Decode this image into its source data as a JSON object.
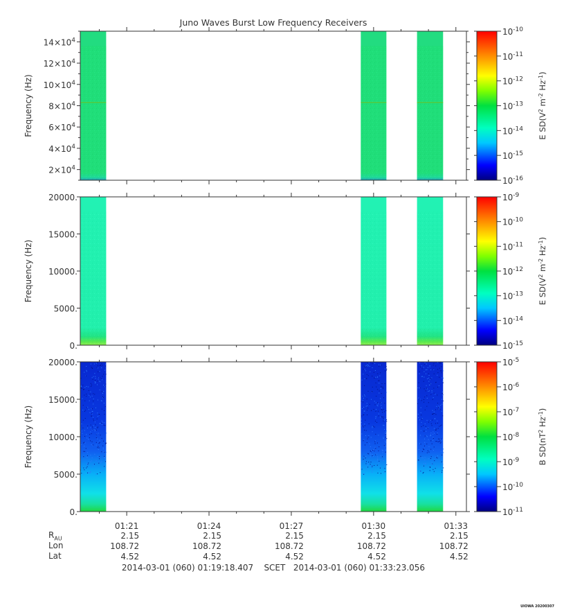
{
  "title": "Juno Waves Burst Low Frequency Receivers",
  "stamp": "UIOWA 20200307",
  "time_ticks": [
    "01:21",
    "01:24",
    "01:27",
    "01:30",
    "01:33"
  ],
  "ephemeris": {
    "labels": [
      "R",
      "Lon",
      "Lat"
    ],
    "r_subscript": "AU",
    "rows": [
      [
        "2.15",
        "2.15",
        "2.15",
        "2.15",
        "2.15"
      ],
      [
        "108.72",
        "108.72",
        "108.72",
        "108.72",
        "108.72"
      ],
      [
        "4.52",
        "4.52",
        "4.52",
        "4.52",
        "4.52"
      ]
    ]
  },
  "footer": {
    "start": "2014-03-01 (060) 01:19:18.407",
    "label": "SCET",
    "end": "2014-03-01 (060) 01:33:23.056"
  },
  "colors": {
    "axis": "#333333",
    "background": "#ffffff"
  },
  "chart_data": [
    {
      "type": "heatmap",
      "title": "Juno Waves Burst Low Frequency Receivers",
      "ylabel": "Frequency (Hz)",
      "ylim": [
        10000,
        150000
      ],
      "yticks": [
        {
          "v": 20000,
          "m": "2",
          "e": "4"
        },
        {
          "v": 40000,
          "m": "4",
          "e": "4"
        },
        {
          "v": 60000,
          "m": "6",
          "e": "4"
        },
        {
          "v": 80000,
          "m": "8",
          "e": "4"
        },
        {
          "v": 100000,
          "m": "10",
          "e": "4"
        },
        {
          "v": 120000,
          "m": "12",
          "e": "4"
        },
        {
          "v": 140000,
          "m": "14",
          "e": "4"
        }
      ],
      "colorbar": {
        "label": "E SD",
        "unit_base": "V",
        "unit": "m",
        "unit_tail": "Hz",
        "exp_min": -16,
        "exp_max": -10
      },
      "data_intervals": [
        "01:19:18-01:20:15",
        "01:29:32-01:30:28",
        "01:31:35-01:32:32"
      ],
      "dominant_level": "1e-13 to 1e-14"
    },
    {
      "type": "heatmap",
      "ylabel": "Frequency (Hz)",
      "ylim": [
        0,
        20000
      ],
      "yticks": [
        {
          "v": 0,
          "t": "0."
        },
        {
          "v": 5000,
          "t": "5000."
        },
        {
          "v": 10000,
          "t": "10000."
        },
        {
          "v": 15000,
          "t": "15000."
        },
        {
          "v": 20000,
          "t": "20000."
        }
      ],
      "colorbar": {
        "label": "E SD",
        "unit_base": "V",
        "unit": "m",
        "unit_tail": "Hz",
        "exp_min": -15,
        "exp_max": -9
      },
      "data_intervals": [
        "01:19:18-01:20:15",
        "01:29:32-01:30:28",
        "01:31:35-01:32:32"
      ],
      "dominant_level": "1e-13"
    },
    {
      "type": "heatmap",
      "ylabel": "Frequency (Hz)",
      "ylim": [
        0,
        20000
      ],
      "yticks": [
        {
          "v": 0,
          "t": "0."
        },
        {
          "v": 5000,
          "t": "5000."
        },
        {
          "v": 10000,
          "t": "10000."
        },
        {
          "v": 15000,
          "t": "15000."
        },
        {
          "v": 20000,
          "t": "20000."
        }
      ],
      "colorbar": {
        "label": "B SD",
        "unit_base": "nT",
        "unit": "Hz",
        "unit_tail": "",
        "exp_min": -11,
        "exp_max": -5
      },
      "data_intervals": [
        "01:19:18-01:20:15",
        "01:29:32-01:30:28",
        "01:31:35-01:32:32"
      ],
      "dominant_level": "1e-10 to 1e-8 (increasing toward low frequency)"
    }
  ]
}
